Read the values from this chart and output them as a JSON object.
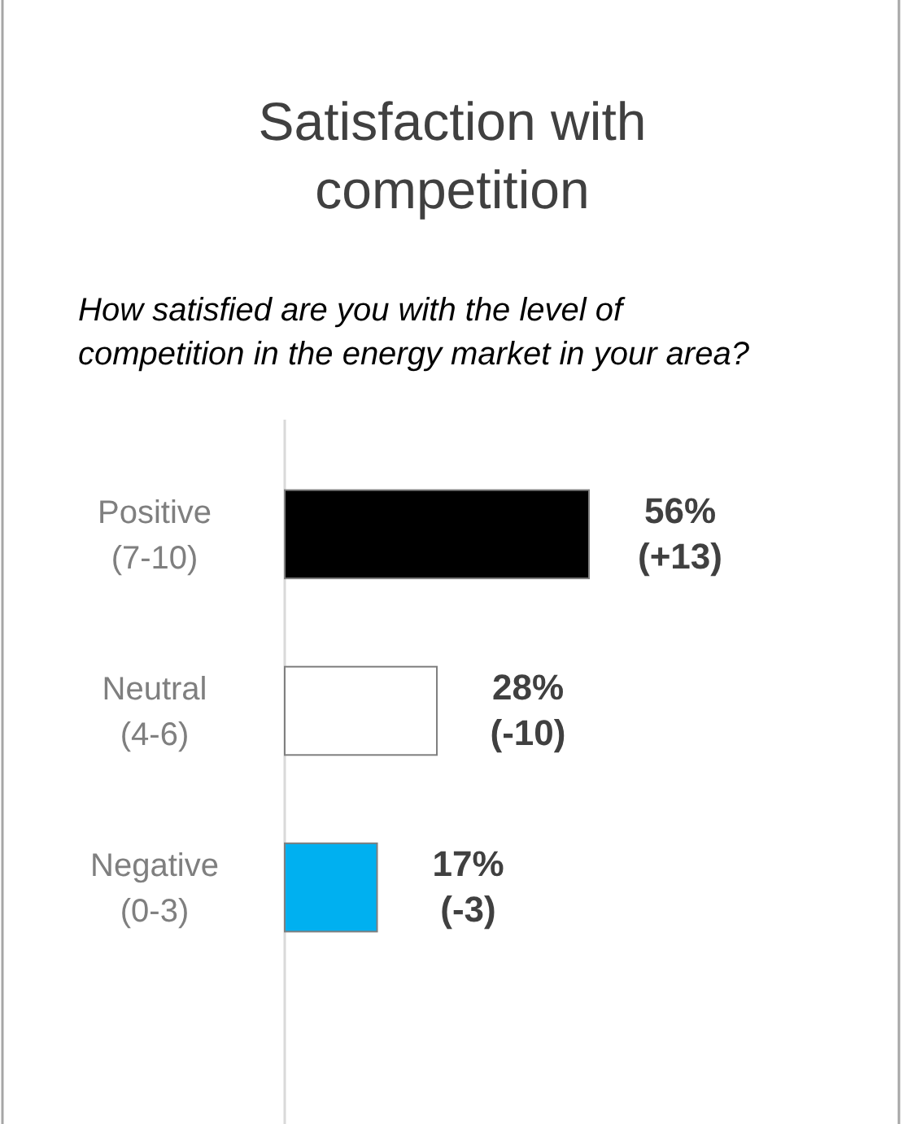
{
  "chart_data": {
    "type": "bar",
    "orientation": "horizontal",
    "title": "Satisfaction with competition",
    "subtitle": "How satisfied are you with the level of competition in the energy market in your area?",
    "categories": [
      "Positive (7-10)",
      "Neutral (4-6)",
      "Negative (0-3)"
    ],
    "values": [
      56,
      28,
      17
    ],
    "colors": [
      "#000000",
      "#ffffff",
      "#00b0f0"
    ],
    "value_labels": [
      "56% (+13)",
      "28% (-10)",
      "17% (-3)"
    ],
    "tick_labels": "y"
  }
}
